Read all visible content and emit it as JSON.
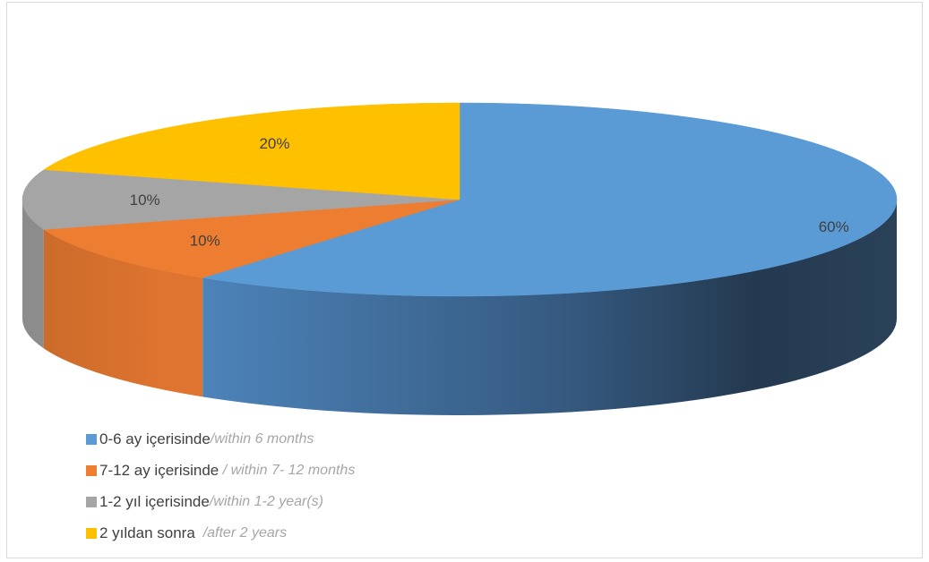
{
  "chart_data": {
    "type": "pie",
    "title": "",
    "subtitle": "",
    "categories": [
      "0-6 ay içerisinde",
      "7-12 ay içerisinde",
      "1-2 yıl içerisinde",
      "2 yıldan sonra"
    ],
    "values": [
      60,
      10,
      10,
      20
    ],
    "unit": "%",
    "data_labels": [
      "60%",
      "10%",
      "10%",
      "20%"
    ],
    "colors": [
      "#5B9BD5",
      "#ED7D31",
      "#A5A5A5",
      "#FFC000"
    ],
    "three_d": true,
    "legend_position": "bottom-left",
    "legend": [
      {
        "label": "0-6 ay içerisinde",
        "note": "/within 6 months",
        "color": "#5B9BD5"
      },
      {
        "label": "7-12 ay içerisinde",
        "note": " / within 7- 12 months",
        "color": "#ED7D31"
      },
      {
        "label": "1-2 yıl içerisinde",
        "note": "/within 1-2 year(s)",
        "color": "#A5A5A5"
      },
      {
        "label": "2 yıldan sonra",
        "note": "  /after 2 years",
        "color": "#FFC000"
      }
    ]
  }
}
